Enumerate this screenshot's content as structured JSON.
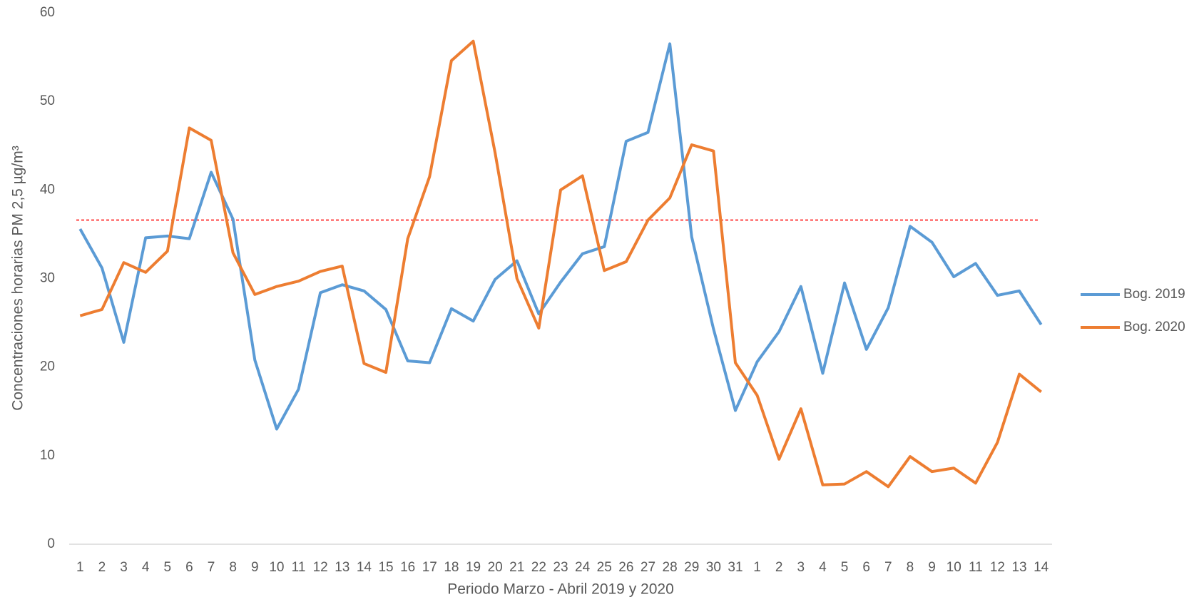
{
  "chart_data": {
    "type": "line",
    "x_label": "Periodo Marzo - Abril 2019 y 2020",
    "y_label": "Concentraciones horarias PM 2,5 µg/m³",
    "categories": [
      "1",
      "2",
      "3",
      "4",
      "5",
      "6",
      "7",
      "8",
      "9",
      "10",
      "11",
      "12",
      "13",
      "14",
      "15",
      "16",
      "17",
      "18",
      "19",
      "20",
      "21",
      "22",
      "23",
      "24",
      "25",
      "26",
      "27",
      "28",
      "29",
      "30",
      "31",
      "1",
      "2",
      "3",
      "4",
      "5",
      "6",
      "7",
      "8",
      "9",
      "10",
      "11",
      "12",
      "13",
      "14"
    ],
    "series": [
      {
        "name": "Bog. 2019",
        "color": "#5b9bd5",
        "values": [
          35.6,
          31.2,
          22.8,
          34.6,
          34.8,
          34.5,
          42.0,
          36.7,
          20.8,
          13.0,
          17.5,
          28.4,
          29.3,
          28.6,
          26.5,
          20.7,
          20.5,
          26.6,
          25.2,
          29.9,
          32.0,
          26.0,
          29.6,
          32.8,
          33.6,
          45.5,
          46.5,
          56.5,
          34.7,
          24.3,
          15.1,
          20.6,
          24.0,
          29.1,
          19.3,
          29.5,
          22.0,
          26.7,
          35.9,
          34.1,
          30.2,
          31.7,
          28.1,
          28.6,
          24.8
        ]
      },
      {
        "name": "Bog. 2020",
        "color": "#ed7d31",
        "values": [
          25.8,
          26.5,
          31.8,
          30.7,
          33.1,
          47.0,
          45.6,
          32.9,
          28.2,
          29.1,
          29.7,
          30.8,
          31.4,
          20.4,
          19.4,
          34.5,
          41.5,
          54.6,
          56.8,
          44.2,
          30.0,
          24.4,
          40.0,
          41.6,
          30.9,
          31.9,
          36.6,
          39.1,
          45.1,
          44.4,
          20.5,
          16.8,
          9.6,
          15.3,
          6.7,
          6.8,
          8.2,
          6.5,
          9.9,
          8.2,
          8.6,
          6.9,
          11.5,
          19.2,
          17.2
        ]
      }
    ],
    "reference_line": {
      "value": 36.6,
      "color": "#ff0000"
    },
    "ylim": [
      0,
      60
    ],
    "yticks": [
      0,
      10,
      20,
      30,
      40,
      50,
      60
    ],
    "grid": false,
    "legend": "right"
  }
}
